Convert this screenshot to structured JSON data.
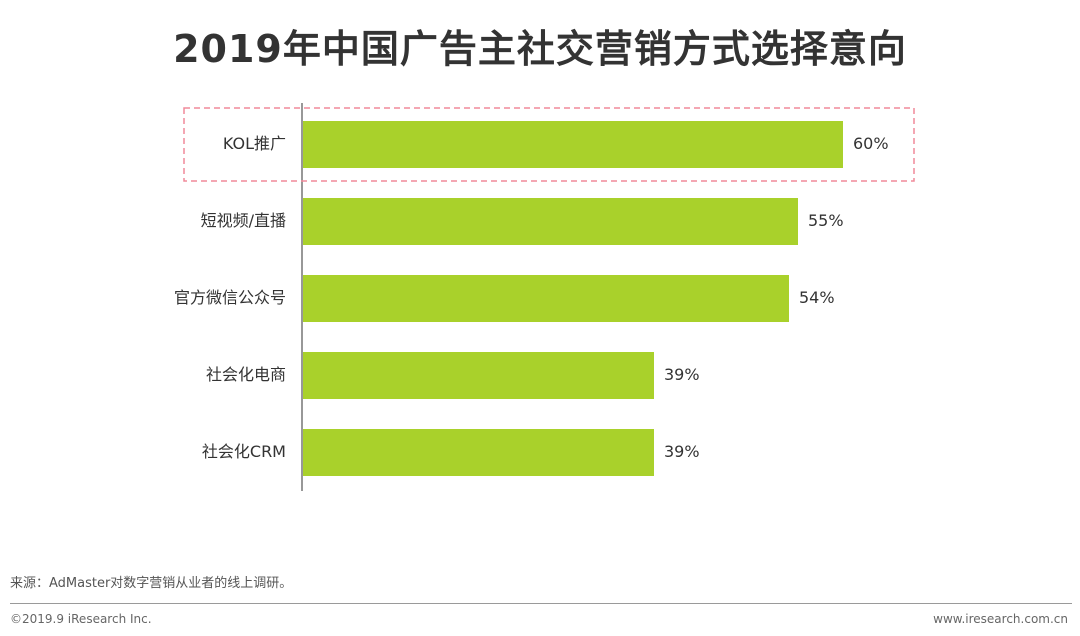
{
  "title": "2019年中国广告主社交营销方式选择意向",
  "chart_data": {
    "type": "bar",
    "orientation": "horizontal",
    "categories": [
      "KOL推广",
      "短视频/直播",
      "官方微信公众号",
      "社会化电商",
      "社会化CRM"
    ],
    "values": [
      60,
      55,
      54,
      39,
      39
    ],
    "value_labels": [
      "60%",
      "55%",
      "54%",
      "39%",
      "39%"
    ],
    "unit": "%",
    "highlighted_category": "KOL推广",
    "bar_color": "#a9d12b",
    "highlight_border_color": "#f08a9a"
  },
  "source": "来源：AdMaster对数字营销从业者的线上调研。",
  "copyright": "©2019.9 iResearch Inc.",
  "site": "www.iresearch.com.cn"
}
